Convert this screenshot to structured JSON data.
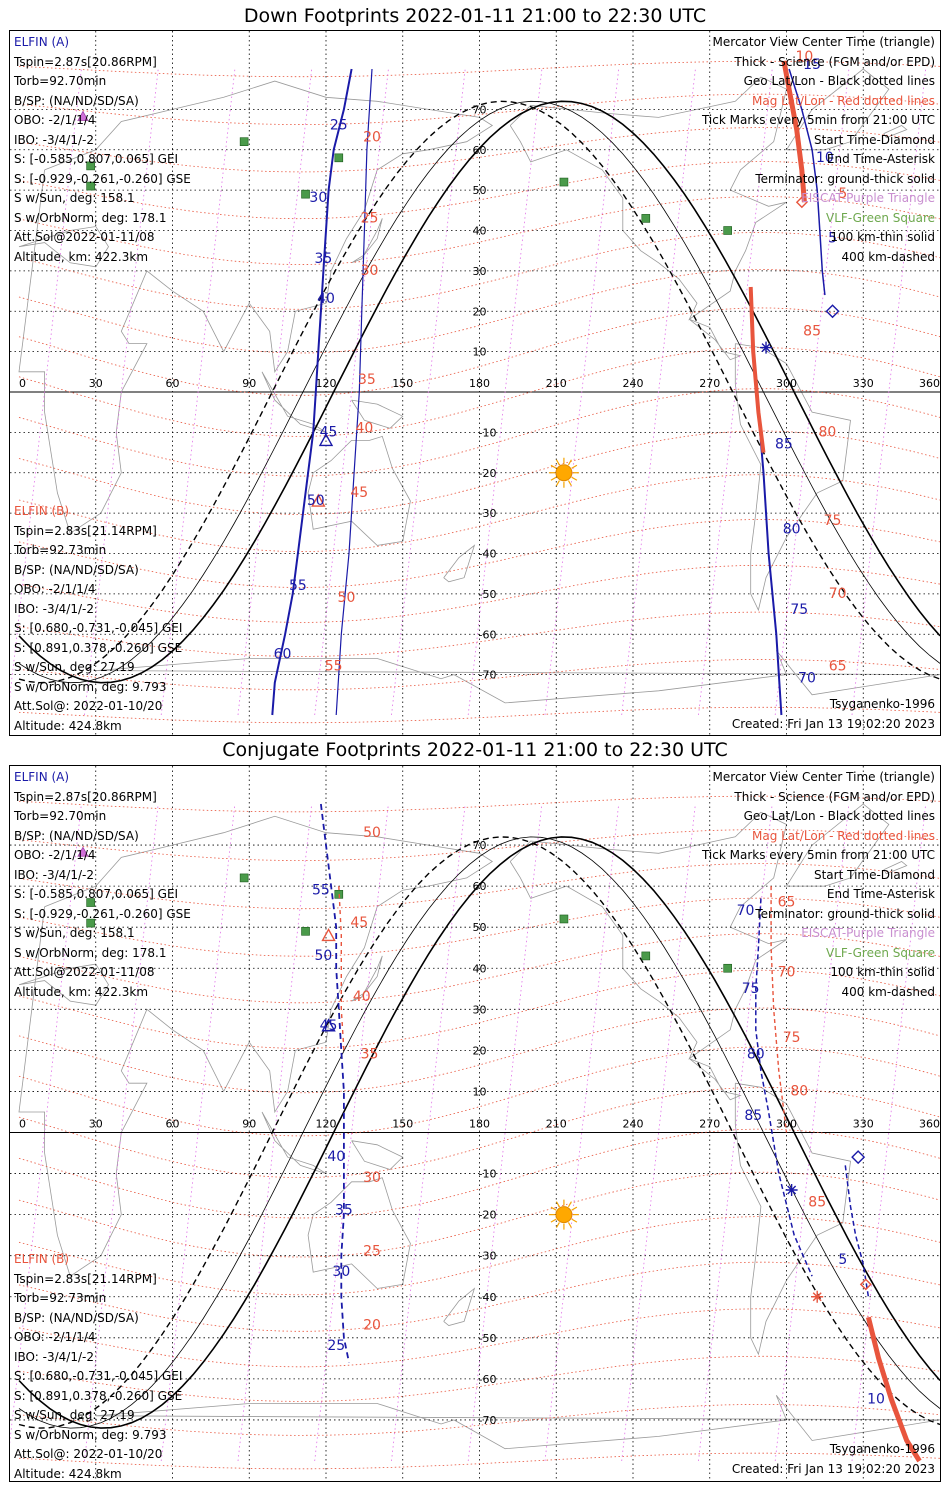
{
  "panels": [
    {
      "title": "Down Footprints 2022-01-11 21:00 to 22:30 UTC",
      "elfin_a": {
        "name": "ELFIN (A)",
        "lines": [
          "Tspin=2.87s[20.86RPM]",
          "Torb=92.70min",
          "B/SP: (NA/ND/SD/SA)",
          "OBO: -2/1/1/4",
          "IBO: -3/4/1/-2",
          "S: [-0.585,0.807,0.065] GEI",
          "S: [-0.929,-0.261,-0.260] GSE",
          "S w/Sun, deg: 158.1",
          "S w/OrbNorm, deg: 178.1",
          "Att.Sol@2022-01-11/08",
          "Altitude, km: 422.3km"
        ]
      },
      "elfin_b": {
        "name": "ELFIN (B)",
        "lines": [
          "Tspin=2.83s[21.14RPM]",
          "Torb=92.73min",
          "B/SP: (NA/ND/SD/SA)",
          "OBO: -2/1/1/4",
          "IBO: -3/4/1/-2",
          "S: [0.680,-0.731,-0.045] GEI",
          "S: [0.891,0.378,-0.260] GSE",
          "S w/Sun, deg: 27.19",
          "S w/OrbNorm, deg: 9.793",
          "Att.Sol@: 2022-01-10/20",
          "Altitude: 424.8km"
        ]
      },
      "legend": [
        {
          "text": "Mercator View Center Time (triangle)",
          "color": "black"
        },
        {
          "text": "Thick - Science (FGM and/or EPD)",
          "color": "black"
        },
        {
          "text": "Geo Lat/Lon - Black dotted lines",
          "color": "black"
        },
        {
          "text": "Mag Lat/Lon - Red dotted lines",
          "color": "red"
        },
        {
          "text": "Tick Marks every 5min from 21:00 UTC",
          "color": "black"
        },
        {
          "text": "Start Time-Diamond",
          "color": "black"
        },
        {
          "text": "End Time-Asterisk",
          "color": "black"
        },
        {
          "text": "Terminator: ground-thick solid",
          "color": "black"
        },
        {
          "text": "EISCAT-Purple Triangle",
          "color": "purple"
        },
        {
          "text": "VLF-Green Square",
          "color": "green"
        },
        {
          "text": "100 km-thin solid",
          "color": "black"
        },
        {
          "text": "400 km-dashed",
          "color": "black"
        }
      ],
      "model": "Tsyganenko-1996",
      "created": "Created: Fri Jan 13 19:02:20 2023",
      "blue_labels": [
        {
          "t": "25",
          "lon": 125,
          "lat": 65
        },
        {
          "t": "30",
          "lon": 117,
          "lat": 47
        },
        {
          "t": "35",
          "lon": 119,
          "lat": 32
        },
        {
          "t": "40",
          "lon": 120,
          "lat": 22
        },
        {
          "t": "45",
          "lon": 121,
          "lat": -11
        },
        {
          "t": "50",
          "lon": 116,
          "lat": -28
        },
        {
          "t": "55",
          "lon": 109,
          "lat": -49
        },
        {
          "t": "60",
          "lon": 103,
          "lat": -66
        },
        {
          "t": "15",
          "lon": 310,
          "lat": 80
        },
        {
          "t": "10",
          "lon": 315,
          "lat": 57
        },
        {
          "t": "5",
          "lon": 318,
          "lat": 37
        },
        {
          "t": "85",
          "lon": 299,
          "lat": -14
        },
        {
          "t": "80",
          "lon": 302,
          "lat": -35
        },
        {
          "t": "75",
          "lon": 305,
          "lat": -55
        },
        {
          "t": "70",
          "lon": 308,
          "lat": -72
        }
      ],
      "red_labels": [
        {
          "t": "20",
          "lon": 138,
          "lat": 62
        },
        {
          "t": "25",
          "lon": 137,
          "lat": 42
        },
        {
          "t": "30",
          "lon": 137,
          "lat": 29
        },
        {
          "t": "35",
          "lon": 136,
          "lat": 2
        },
        {
          "t": "40",
          "lon": 135,
          "lat": -10
        },
        {
          "t": "45",
          "lon": 133,
          "lat": -26
        },
        {
          "t": "50",
          "lon": 128,
          "lat": -52
        },
        {
          "t": "55",
          "lon": 123,
          "lat": -69
        },
        {
          "t": "10",
          "lon": 307,
          "lat": 82
        },
        {
          "t": "5",
          "lon": 322,
          "lat": 48
        },
        {
          "t": "85",
          "lon": 310,
          "lat": 14
        },
        {
          "t": "80",
          "lon": 316,
          "lat": -11
        },
        {
          "t": "75",
          "lon": 318,
          "lat": -33
        },
        {
          "t": "70",
          "lon": 320,
          "lat": -51
        },
        {
          "t": "65",
          "lon": 320,
          "lat": -69
        }
      ]
    },
    {
      "title": "Conjugate Footprints 2022-01-11 21:00 to 22:30 UTC",
      "elfin_a": {
        "name": "ELFIN (A)",
        "lines": [
          "Tspin=2.87s[20.86RPM]",
          "Torb=92.70min",
          "B/SP: (NA/ND/SD/SA)",
          "OBO: -2/1/1/4",
          "IBO: -3/4/1/-2",
          "S: [-0.585,0.807,0.065] GEI",
          "S: [-0.929,-0.261,-0.260] GSE",
          "S w/Sun, deg: 158.1",
          "S w/OrbNorm, deg: 178.1",
          "Att.Sol@2022-01-11/08",
          "Altitude, km: 422.3km"
        ]
      },
      "elfin_b": {
        "name": "ELFIN (B)",
        "lines": [
          "Tspin=2.83s[21.14RPM]",
          "Torb=92.73min",
          "B/SP: (NA/ND/SD/SA)",
          "OBO: -2/1/1/4",
          "IBO: -3/4/1/-2",
          "S: [0.680,-0.731,-0.045] GEI",
          "S: [0.891,0.378,-0.260] GSE",
          "S w/Sun, deg: 27.19",
          "S w/OrbNorm, deg: 9.793",
          "Att.Sol@: 2022-01-10/20",
          "Altitude: 424.8km"
        ]
      },
      "legend": [
        {
          "text": "Mercator View Center Time (triangle)",
          "color": "black"
        },
        {
          "text": "Thick - Science (FGM and/or EPD)",
          "color": "black"
        },
        {
          "text": "Geo Lat/Lon - Black dotted lines",
          "color": "black"
        },
        {
          "text": "Mag Lat/Lon - Red dotted lines",
          "color": "red"
        },
        {
          "text": "Tick Marks every 5min from 21:00 UTC",
          "color": "black"
        },
        {
          "text": "Start Time-Diamond",
          "color": "black"
        },
        {
          "text": "End Time-Asterisk",
          "color": "black"
        },
        {
          "text": "Terminator: ground-thick solid",
          "color": "black"
        },
        {
          "text": "EISCAT-Purple Triangle",
          "color": "purple"
        },
        {
          "text": "VLF-Green Square",
          "color": "green"
        },
        {
          "text": "100 km-thin solid",
          "color": "black"
        },
        {
          "text": "400 km-dashed",
          "color": "black"
        }
      ],
      "model": "Tsyganenko-1996",
      "created": "Created: Fri Jan 13 19:02:20 2023",
      "blue_labels": [
        {
          "t": "55",
          "lon": 118,
          "lat": 58
        },
        {
          "t": "50",
          "lon": 119,
          "lat": 42
        },
        {
          "t": "45",
          "lon": 121,
          "lat": 25
        },
        {
          "t": "40",
          "lon": 124,
          "lat": -7
        },
        {
          "t": "35",
          "lon": 127,
          "lat": -20
        },
        {
          "t": "30",
          "lon": 126,
          "lat": -35
        },
        {
          "t": "25",
          "lon": 124,
          "lat": -53
        },
        {
          "t": "70",
          "lon": 284,
          "lat": 53
        },
        {
          "t": "75",
          "lon": 286,
          "lat": 34
        },
        {
          "t": "80",
          "lon": 288,
          "lat": 18
        },
        {
          "t": "85",
          "lon": 287,
          "lat": 3
        },
        {
          "t": "5",
          "lon": 322,
          "lat": -32
        },
        {
          "t": "10",
          "lon": 335,
          "lat": -66
        }
      ],
      "red_labels": [
        {
          "t": "50",
          "lon": 138,
          "lat": 72
        },
        {
          "t": "45",
          "lon": 133,
          "lat": 50
        },
        {
          "t": "40",
          "lon": 134,
          "lat": 32
        },
        {
          "t": "35",
          "lon": 137,
          "lat": 18
        },
        {
          "t": "30",
          "lon": 138,
          "lat": -12
        },
        {
          "t": "25",
          "lon": 138,
          "lat": -30
        },
        {
          "t": "20",
          "lon": 138,
          "lat": -48
        },
        {
          "t": "65",
          "lon": 300,
          "lat": 55
        },
        {
          "t": "70",
          "lon": 300,
          "lat": 38
        },
        {
          "t": "75",
          "lon": 302,
          "lat": 22
        },
        {
          "t": "80",
          "lon": 305,
          "lat": 9
        },
        {
          "t": "85",
          "lon": 312,
          "lat": -18
        }
      ]
    }
  ],
  "shared": {
    "lon_labels": [
      "0",
      "30",
      "60",
      "90",
      "120",
      "150",
      "180",
      "210",
      "240",
      "270",
      "300",
      "330",
      "360"
    ],
    "lat_labels": [
      "70",
      "60",
      "50",
      "40",
      "30",
      "20",
      "10",
      "-10",
      "-20",
      "-30",
      "-40",
      "-50",
      "-60",
      "-70"
    ],
    "colors": {
      "blue": "#1a1aa8",
      "red": "#e8553d",
      "purple": "#e070e8",
      "green": "#4a9a4a",
      "coast": "#9a9a9a",
      "grid": "#000000"
    }
  }
}
